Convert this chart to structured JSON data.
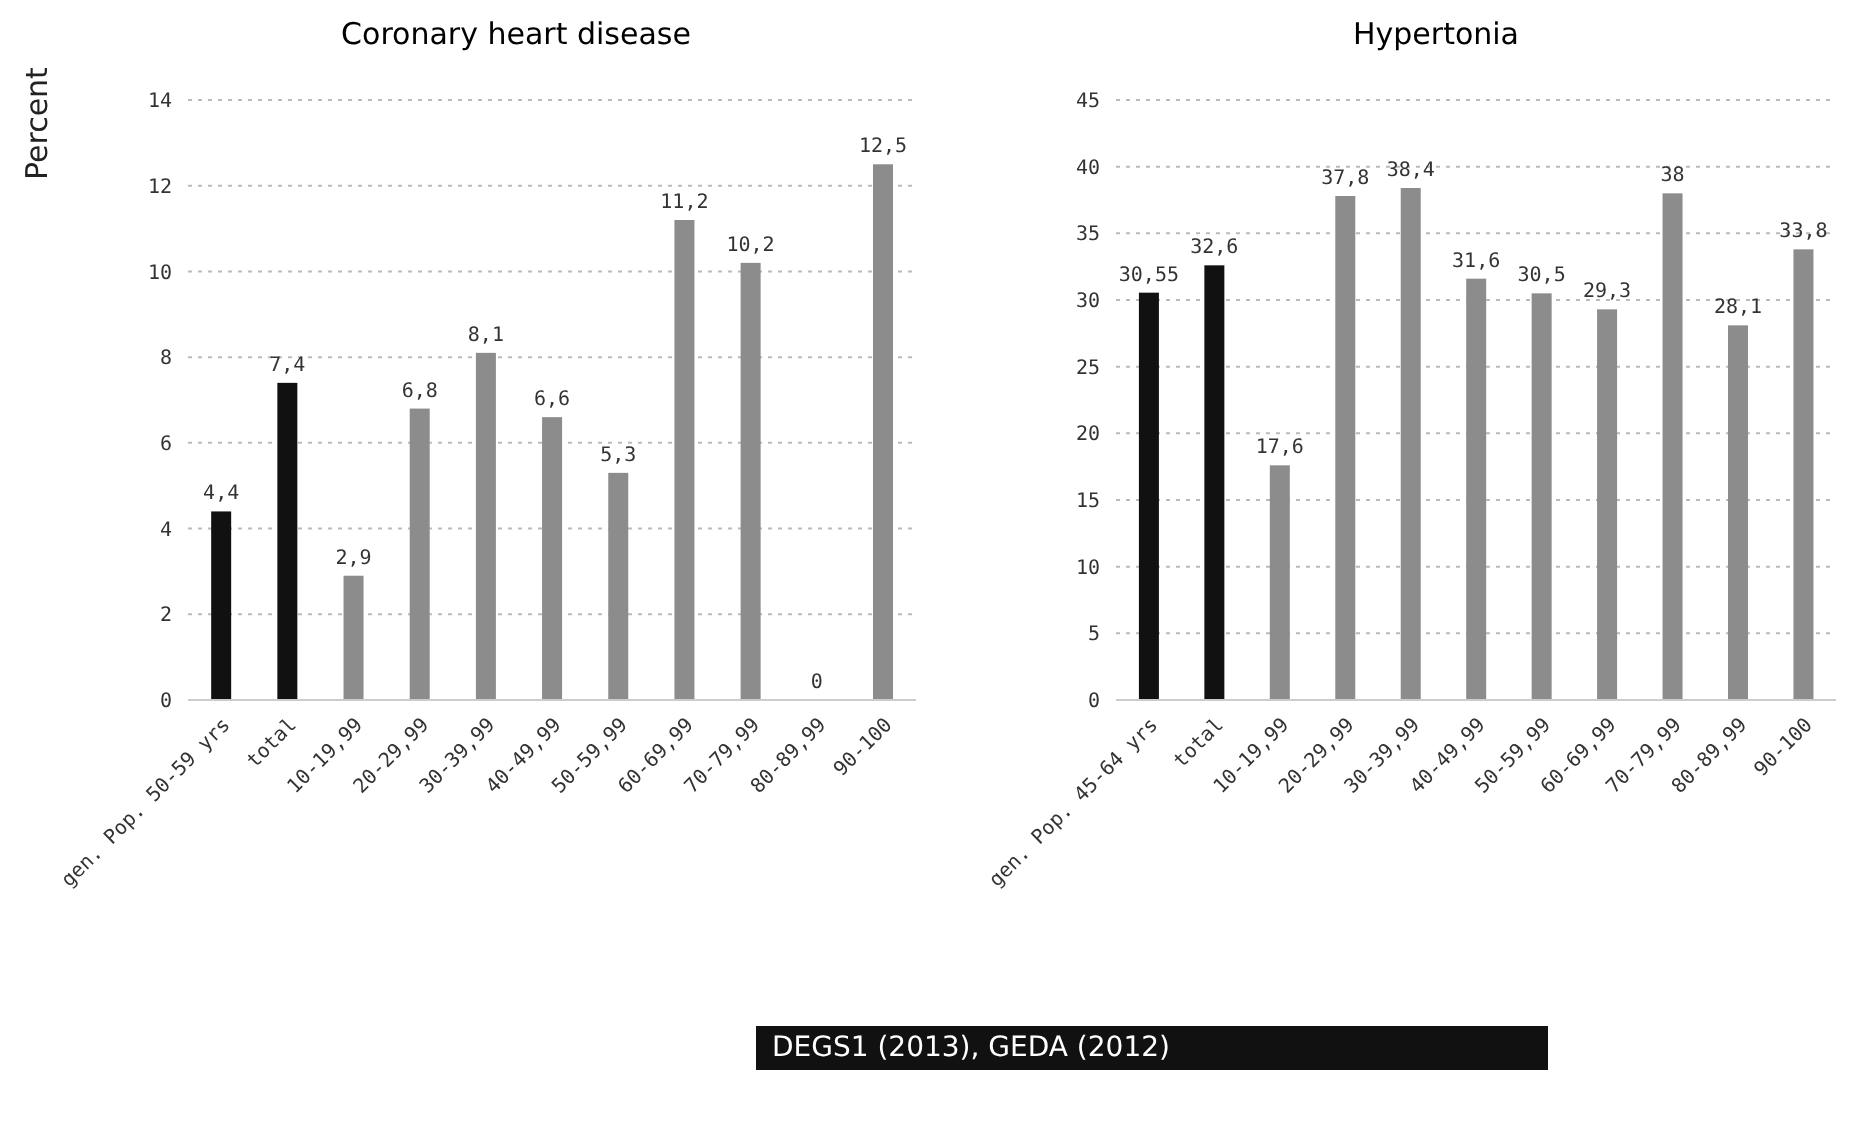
{
  "chart_data": [
    {
      "type": "bar",
      "title": "Coronary heart disease",
      "ylabel": "Percent",
      "categories": [
        "gen. Pop. 50-59 yrs",
        "total",
        "10-19,99",
        "20-29,99",
        "30-39,99",
        "40-49,99",
        "50-59,99",
        "60-69,99",
        "70-79,99",
        "80-89,99",
        "90-100"
      ],
      "values": [
        4.4,
        7.4,
        2.9,
        6.8,
        8.1,
        6.6,
        5.3,
        11.2,
        10.2,
        0,
        12.5
      ],
      "colors": [
        "#111111",
        "#111111",
        "#8c8c8c",
        "#8c8c8c",
        "#8c8c8c",
        "#8c8c8c",
        "#8c8c8c",
        "#8c8c8c",
        "#8c8c8c",
        "#8c8c8c",
        "#8c8c8c"
      ],
      "value_labels": [
        "4,4",
        "7,4",
        "2,9",
        "6,8",
        "8,1",
        "6,6",
        "5,3",
        "11,2",
        "10,2",
        "0",
        "12,5"
      ],
      "ylim": [
        0,
        14
      ],
      "yticks": [
        0,
        2,
        4,
        6,
        8,
        10,
        12,
        14
      ],
      "grid": "y"
    },
    {
      "type": "bar",
      "title": "Hypertonia",
      "categories": [
        "gen. Pop. 45-64 yrs",
        "total",
        "10-19,99",
        "20-29,99",
        "30-39,99",
        "40-49,99",
        "50-59,99",
        "60-69,99",
        "70-79,99",
        "80-89,99",
        "90-100"
      ],
      "values": [
        30.55,
        32.6,
        17.6,
        37.8,
        38.4,
        31.6,
        30.5,
        29.3,
        38,
        28.1,
        33.8
      ],
      "colors": [
        "#111111",
        "#111111",
        "#8c8c8c",
        "#8c8c8c",
        "#8c8c8c",
        "#8c8c8c",
        "#8c8c8c",
        "#8c8c8c",
        "#8c8c8c",
        "#8c8c8c",
        "#8c8c8c"
      ],
      "value_labels": [
        "30,55",
        "32,6",
        "17,6",
        "37,8",
        "38,4",
        "31,6",
        "30,5",
        "29,3",
        "38",
        "28,1",
        "33,8"
      ],
      "ylim": [
        0,
        45
      ],
      "yticks": [
        0,
        5,
        10,
        15,
        20,
        25,
        30,
        35,
        40,
        45
      ],
      "grid": "y",
      "annotations": [
        "DEGS1 (2013), GEDA (2012)"
      ]
    }
  ]
}
